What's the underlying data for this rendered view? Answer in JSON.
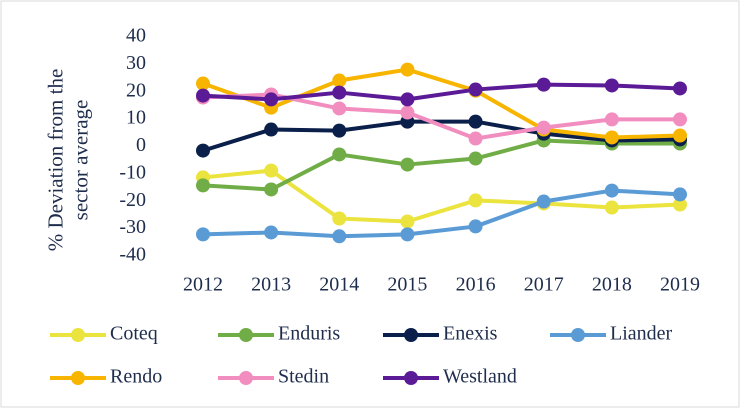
{
  "chart_data": {
    "type": "line",
    "ylabel": [
      "% Deviation from the",
      "sector average"
    ],
    "categories": [
      "2012",
      "2013",
      "2014",
      "2015",
      "2016",
      "2017",
      "2018",
      "2019"
    ],
    "ylim": [
      -40,
      40
    ],
    "yticks": [
      -40,
      -30,
      -20,
      -10,
      0,
      10,
      20,
      30,
      40
    ],
    "grid": false,
    "legend": "bottom",
    "series": [
      {
        "name": "Coteq",
        "color": "#ebe33e",
        "values": [
          -11.3,
          -8.8,
          -26.3,
          -27.4,
          -19.7,
          -20.8,
          -22.3,
          -21.2
        ]
      },
      {
        "name": "Enduris",
        "color": "#70ad47",
        "values": [
          -14.2,
          -15.7,
          -2.9,
          -6.6,
          -4.4,
          2.2,
          1.1,
          1.1
        ]
      },
      {
        "name": "Enexis",
        "color": "#0b1f4b",
        "values": [
          -1.5,
          6.2,
          5.8,
          9.1,
          9.1,
          4.7,
          2.2,
          2.6
        ]
      },
      {
        "name": "Liander",
        "color": "#5b9bd5",
        "values": [
          -32.1,
          -31.4,
          -32.8,
          -32.1,
          -29.2,
          -20.1,
          -16.1,
          -17.5
        ]
      },
      {
        "name": "Rendo",
        "color": "#f7b500",
        "values": [
          23,
          14.2,
          24.1,
          28.1,
          20.4,
          6.2,
          3.3,
          4.0
        ]
      },
      {
        "name": "Stedin",
        "color": "#f28dc0",
        "values": [
          17.9,
          19,
          13.9,
          12.4,
          2.9,
          6.9,
          9.9,
          9.9
        ]
      },
      {
        "name": "Westland",
        "color": "#5b1b96",
        "values": [
          18.6,
          17.2,
          19.7,
          17.2,
          20.8,
          22.6,
          22.3,
          21.2
        ]
      }
    ]
  }
}
